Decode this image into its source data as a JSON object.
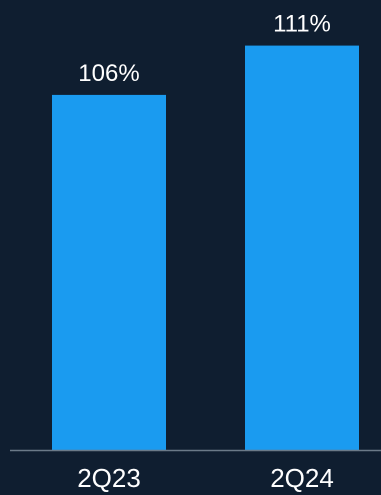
{
  "chart_data": {
    "type": "bar",
    "categories": [
      "2Q23",
      "2Q24"
    ],
    "values": [
      106,
      111
    ],
    "data_labels": [
      "106%",
      "111%"
    ],
    "title": "",
    "xlabel": "",
    "ylabel": "",
    "ylim": [
      70,
      114
    ],
    "grid": false,
    "legend": "none"
  },
  "colors": {
    "background": "#0f1e30",
    "bar": "#1a9bf0",
    "baseline": "#6b7a88",
    "text": "#ffffff"
  }
}
